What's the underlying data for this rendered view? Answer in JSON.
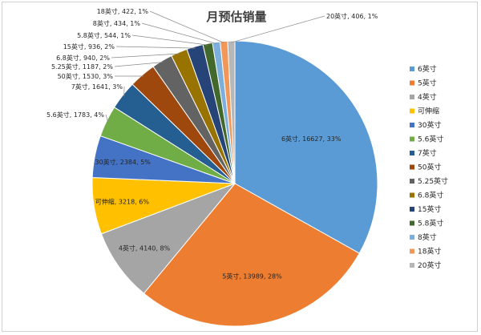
{
  "chart_data": {
    "type": "pie",
    "title": "月预估销量",
    "legend_position": "right",
    "slices": [
      {
        "label": "6英寸",
        "value": 16627,
        "percent": "33%",
        "color": "#5b9bd5",
        "text": "6英寸, 16627, 33%"
      },
      {
        "label": "5英寸",
        "value": 13989,
        "percent": "28%",
        "color": "#ed7d31",
        "text": "5英寸, 13989, 28%"
      },
      {
        "label": "4英寸",
        "value": 4140,
        "percent": "8%",
        "color": "#a5a5a5",
        "text": "4英寸, 4140, 8%"
      },
      {
        "label": "可伸缩",
        "value": 3218,
        "percent": "6%",
        "color": "#ffc000",
        "text": "可伸缩, 3218, 6%"
      },
      {
        "label": "30英寸",
        "value": 2384,
        "percent": "5%",
        "color": "#4472c4",
        "text": "30英寸, 2384, 5%"
      },
      {
        "label": "5.6英寸",
        "value": 1783,
        "percent": "4%",
        "color": "#70ad47",
        "text": "5.6英寸, 1783, 4%"
      },
      {
        "label": "7英寸",
        "value": 1641,
        "percent": "3%",
        "color": "#255e91",
        "text": "7英寸, 1641, 3%"
      },
      {
        "label": "50英寸",
        "value": 1530,
        "percent": "3%",
        "color": "#9e480e",
        "text": "50英寸, 1530, 3%"
      },
      {
        "label": "5.25英寸",
        "value": 1187,
        "percent": "2%",
        "color": "#636363",
        "text": "5.25英寸, 1187, 2%"
      },
      {
        "label": "6.8英寸",
        "value": 940,
        "percent": "2%",
        "color": "#997300",
        "text": "6.8英寸, 940, 2%"
      },
      {
        "label": "15英寸",
        "value": 936,
        "percent": "2%",
        "color": "#264478",
        "text": "15英寸, 936, 2%"
      },
      {
        "label": "5.8英寸",
        "value": 544,
        "percent": "1%",
        "color": "#43682b",
        "text": "5.8英寸, 544, 1%"
      },
      {
        "label": "8英寸",
        "value": 434,
        "percent": "1%",
        "color": "#7cafdd",
        "text": "8英寸, 434, 1%"
      },
      {
        "label": "18英寸",
        "value": 422,
        "percent": "1%",
        "color": "#f1975a",
        "text": "18英寸, 422, 1%"
      },
      {
        "label": "20英寸",
        "value": 406,
        "percent": "1%",
        "color": "#b7b7b7",
        "text": "20英寸, 406, 1%"
      }
    ]
  }
}
